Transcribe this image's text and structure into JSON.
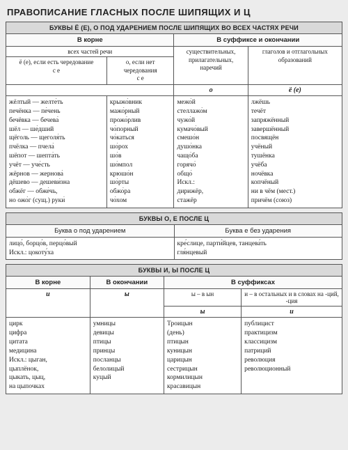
{
  "title": "ПРАВОПИСАНИЕ ГЛАСНЫХ ПОСЛЕ ШИПЯЩИХ И Ц",
  "t1": {
    "header": "БУКВЫ Ё (Е), О ПОД УДАРЕНИЕМ ПОСЛЕ ШИПЯЩИХ ВО ВСЕХ ЧАСТЯХ РЕЧИ",
    "h_root": "В корне",
    "h_suf": "В суффиксе и окончании",
    "sh_all": "всех частей речи",
    "sh_noun": "существительных, прилагательных, наречий",
    "sh_verb": "глаголов и отглагольных образований",
    "r1": "ё (е), если есть чередование",
    "r1b": "с е",
    "r2": "о, если нет чередования",
    "r2b": "с е",
    "l_o": "о",
    "l_e": "ё (е)",
    "c1": [
      "жёлтый — желте́ть",
      "печёнка — пе́чень",
      "бечёвка — бечева́",
      "шёл — ше́дший",
      "щёголь — щеголя́ть",
      "пчёлка — пчела́",
      "шёпот — шепта́ть",
      "учёт — уче́сть",
      "жёрнов — жернова́",
      "дёшево — дешеви́зна",
      "обжёг — обже́чь,",
      "но ожо́г (сущ.) руки́"
    ],
    "c2": [
      "крыжо́вник",
      "мажо́рный",
      "прожо́рлив",
      "чо́порный",
      "чо́каться",
      "шо́рох",
      "шо́в",
      "шо́мпол",
      "крюшо́н",
      "шо́рты",
      "обжо́ра",
      "чо́хом"
    ],
    "c3": [
      "межо́й",
      "стеллажо́м",
      "чужо́й",
      "кумачо́вый",
      "смешо́н",
      "душо́нка",
      "чащо́ба",
      "горячо́",
      "общо́",
      "Искл.:",
      "дирижёр,",
      "стажёр"
    ],
    "c4": [
      "лжёшь",
      "течёт",
      "запряжённый",
      "завершённый",
      "посвящён",
      "учёный",
      "тушёнка",
      "учёба",
      "ночёвка",
      "копчёный",
      "ни в чём (мест.)",
      "причём (союз)"
    ]
  },
  "t2": {
    "header": "БУКВЫ О, Е ПОСЛЕ Ц",
    "h1": "Буква о под ударением",
    "h2": "Буква е без ударения",
    "c1": "лицо́, борцо́в, перцо́вый\nИскл.: цокоту́ха",
    "c2": "кре́слице, парти́йцев, танцева́ть\nгля́нцевый"
  },
  "t3": {
    "header": "БУКВЫ И, Ы ПОСЛЕ Ц",
    "h_root": "В корне",
    "h_end": "В окончании",
    "h_suf": "В суффиксах",
    "l_i": "и",
    "l_y": "ы",
    "r1": "ы – в ын",
    "r2": "и – в остальных и в словах на -ций, -ция",
    "c1": [
      "цирк",
      "цифра",
      "цитата",
      "медицина",
      "Искл.: цыган,",
      "цыплёнок,",
      "цыкать, цыц,",
      "на цыпочках"
    ],
    "c2": [
      "умницы",
      "девицы",
      "птицы",
      "принцы",
      "посланцы",
      "белолицый",
      "куцый"
    ],
    "c3": [
      "Троицын",
      "(день)",
      "птицын",
      "куницын",
      "царицын",
      "сестрицын",
      "кормилицын",
      "красавицын"
    ],
    "c4": [
      "публицист",
      "практицизм",
      "классицизм",
      "патриций",
      "революция",
      "революционный"
    ]
  }
}
